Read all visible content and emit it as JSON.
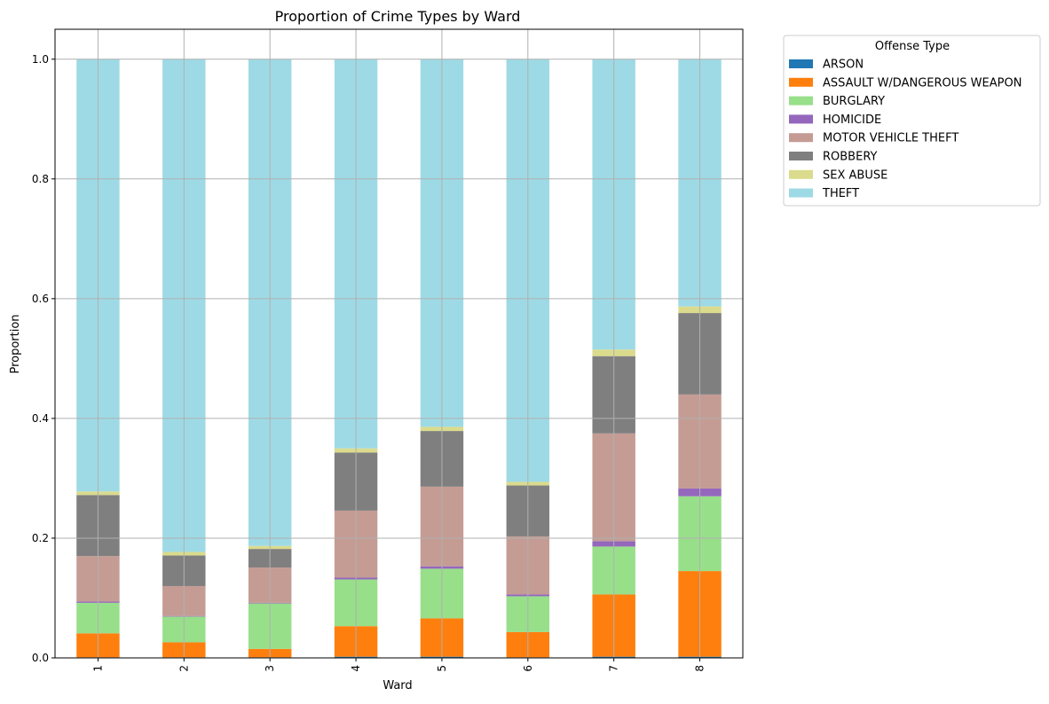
{
  "chart_data": {
    "type": "bar",
    "stacked": true,
    "title": "Proportion of Crime Types by Ward",
    "xlabel": "Ward",
    "ylabel": "Proportion",
    "ylim": [
      0,
      1.05
    ],
    "yticks": [
      "0.0",
      "0.2",
      "0.4",
      "0.6",
      "0.8",
      "1.0"
    ],
    "grid": true,
    "legend": {
      "title": "Offense Type",
      "placement": "outside-right-top"
    },
    "categories": [
      "1",
      "2",
      "3",
      "4",
      "5",
      "6",
      "7",
      "8"
    ],
    "series": [
      {
        "name": "ARSON",
        "color": "#1f77b4",
        "values": [
          0.001,
          0.001,
          0.001,
          0.002,
          0.002,
          0.001,
          0.002,
          0.002
        ]
      },
      {
        "name": "ASSAULT W/DANGEROUS WEAPON",
        "color": "#ff7f0e",
        "values": [
          0.04,
          0.025,
          0.014,
          0.051,
          0.064,
          0.042,
          0.104,
          0.143
        ]
      },
      {
        "name": "BURGLARY",
        "color": "#98df8a",
        "values": [
          0.051,
          0.043,
          0.076,
          0.078,
          0.083,
          0.06,
          0.08,
          0.125
        ]
      },
      {
        "name": "HOMICIDE",
        "color": "#9467bd",
        "values": [
          0.002,
          0.001,
          0.001,
          0.003,
          0.004,
          0.003,
          0.009,
          0.013
        ]
      },
      {
        "name": "MOTOR VEHICLE THEFT",
        "color": "#c49c94",
        "values": [
          0.076,
          0.05,
          0.059,
          0.112,
          0.133,
          0.097,
          0.18,
          0.157
        ]
      },
      {
        "name": "ROBBERY",
        "color": "#7f7f7f",
        "values": [
          0.102,
          0.051,
          0.031,
          0.097,
          0.093,
          0.085,
          0.129,
          0.136
        ]
      },
      {
        "name": "SEX ABUSE",
        "color": "#dbdb8d",
        "values": [
          0.006,
          0.006,
          0.005,
          0.007,
          0.007,
          0.006,
          0.011,
          0.011
        ]
      },
      {
        "name": "THEFT",
        "color": "#9edae5",
        "values": [
          0.722,
          0.823,
          0.813,
          0.65,
          0.614,
          0.706,
          0.485,
          0.413
        ]
      }
    ]
  }
}
